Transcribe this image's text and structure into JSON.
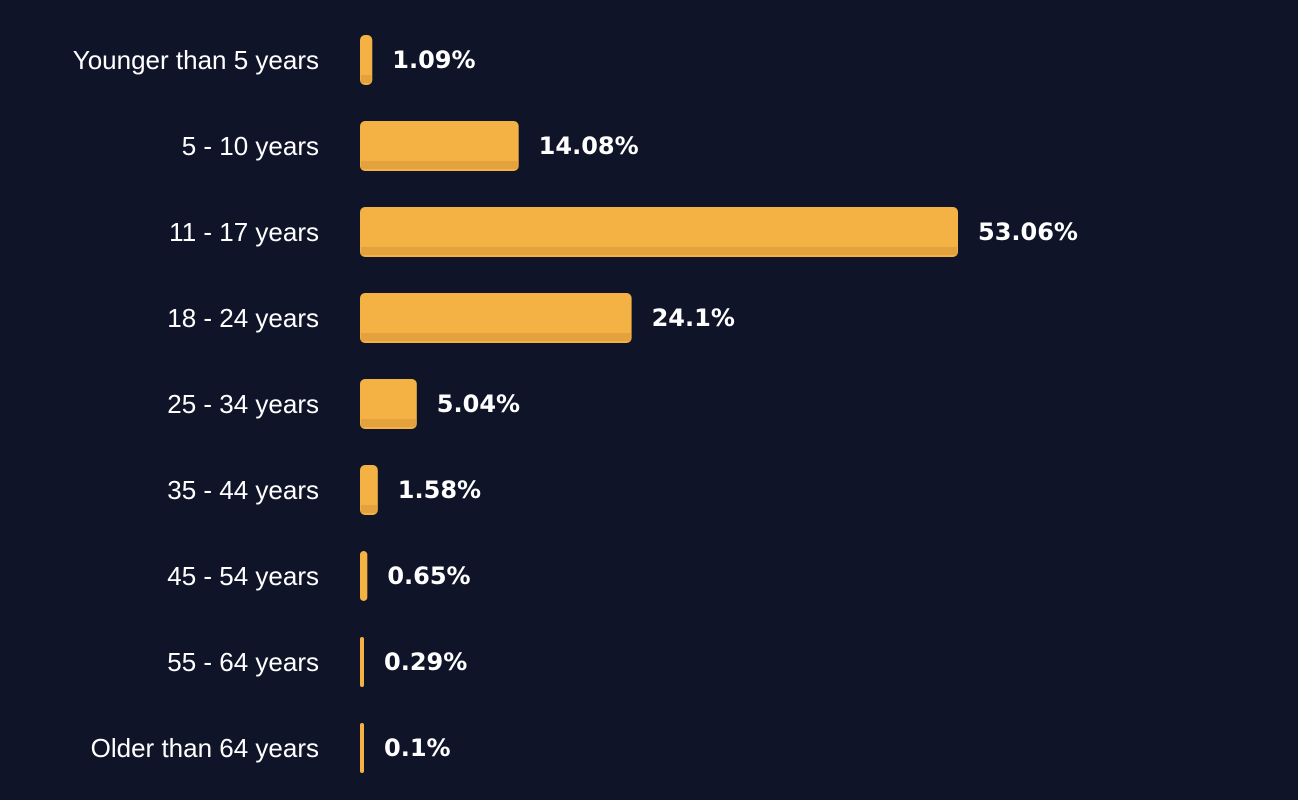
{
  "colors": {
    "background": "#0f1429",
    "bar": "#f3b243",
    "bar_shade": "#e1a03d",
    "category_text": "#ffffff",
    "value_text": "#ffffff"
  },
  "chart_data": {
    "type": "bar",
    "orientation": "horizontal",
    "title": "",
    "xlabel": "",
    "ylabel": "",
    "grid": false,
    "legend": "none",
    "categories": [
      "Younger than 5 years",
      "5 - 10 years",
      "11 - 17 years",
      "18 - 24 years",
      "25 - 34 years",
      "35 - 44 years",
      "45 - 54 years",
      "55 - 64 years",
      "Older than 64 years"
    ],
    "values": [
      1.09,
      14.08,
      53.06,
      24.1,
      5.04,
      1.58,
      0.65,
      0.29,
      0.1
    ],
    "value_labels": [
      "1.09%",
      "14.08%",
      "53.06%",
      "24.1%",
      "5.04%",
      "1.58%",
      "0.65%",
      "0.29%",
      "0.1%"
    ],
    "unit": "%"
  }
}
